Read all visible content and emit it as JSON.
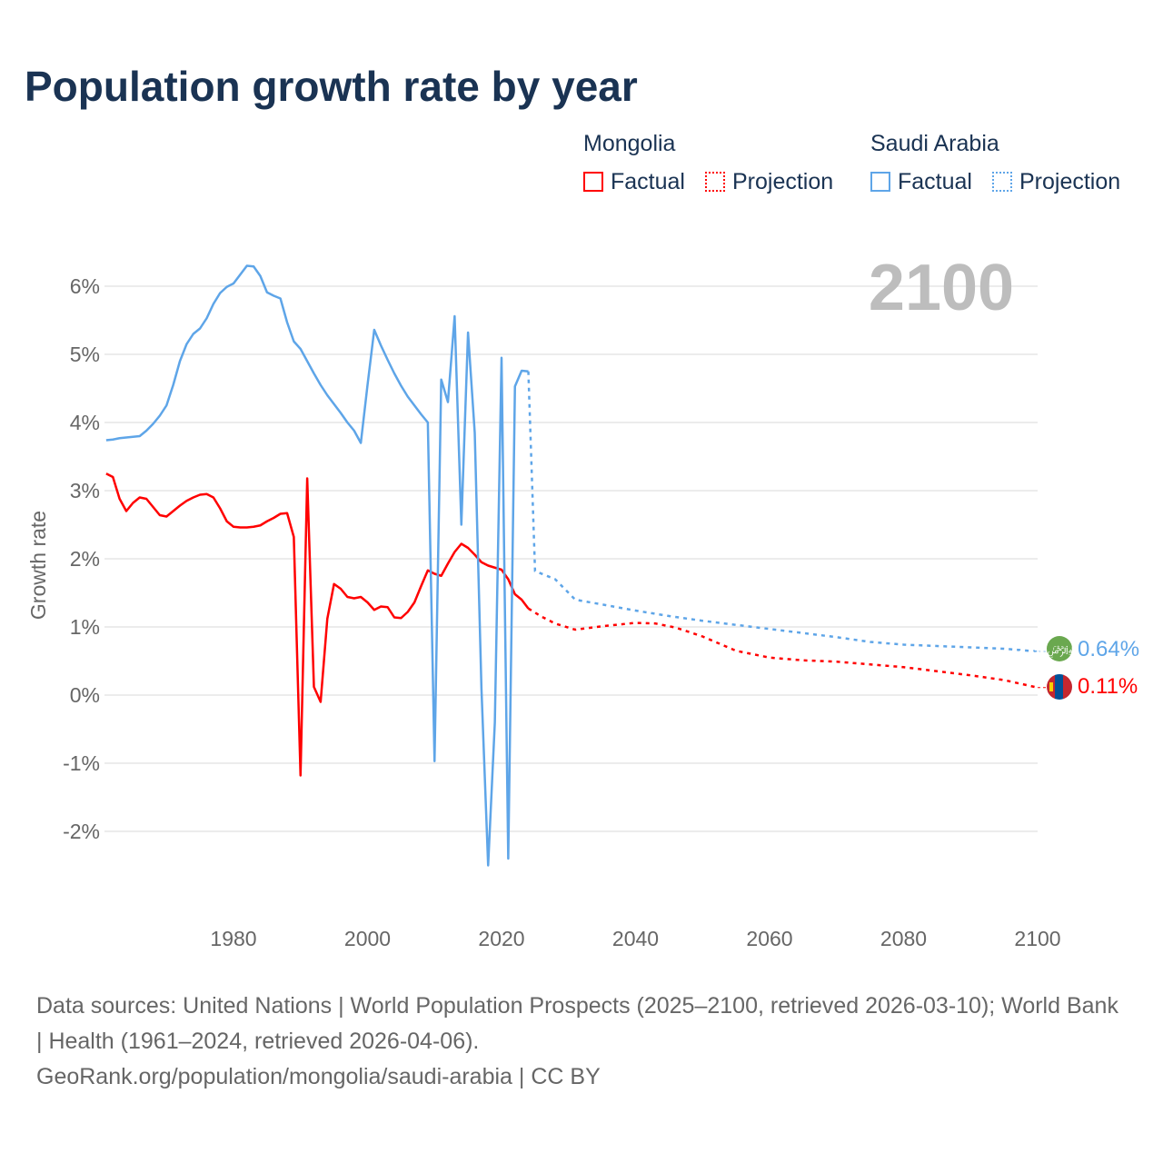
{
  "title": "Population growth rate by year",
  "legend": {
    "groups": [
      {
        "name": "Mongolia",
        "factual": "Factual",
        "projection": "Projection",
        "color": "#ff0000"
      },
      {
        "name": "Saudi Arabia",
        "factual": "Factual",
        "projection": "Projection",
        "color": "#5ea5e8"
      }
    ]
  },
  "footer": {
    "line1": "Data sources: United Nations | World Population Prospects (2025–2100, retrieved 2026-03-10); World Bank | Health (1961–2024, retrieved 2026-04-06).",
    "line2": "GeoRank.org/population/mongolia/saudi-arabia | CC BY"
  },
  "chart_data": {
    "type": "line",
    "title": "Population growth rate by year",
    "xlabel": "",
    "ylabel": "Growth rate",
    "year_label": "2100",
    "xlim": [
      1961,
      2100
    ],
    "ylim": [
      -2.5,
      6.5
    ],
    "xticks": [
      {
        "v": 1980,
        "l": "1980"
      },
      {
        "v": 2000,
        "l": "2000"
      },
      {
        "v": 2020,
        "l": "2020"
      },
      {
        "v": 2040,
        "l": "2040"
      },
      {
        "v": 2060,
        "l": "2060"
      },
      {
        "v": 2080,
        "l": "2080"
      },
      {
        "v": 2100,
        "l": "2100"
      }
    ],
    "yticks": [
      {
        "v": 6,
        "l": "6%"
      },
      {
        "v": 5,
        "l": "5%"
      },
      {
        "v": 4,
        "l": "4%"
      },
      {
        "v": 3,
        "l": "3%"
      },
      {
        "v": 2,
        "l": "2%"
      },
      {
        "v": 1,
        "l": "1%"
      },
      {
        "v": 0,
        "l": "0%"
      },
      {
        "v": -1,
        "l": "-1%"
      },
      {
        "v": -2,
        "l": "-2%"
      }
    ],
    "series": [
      {
        "name": "Mongolia",
        "color": "#ff0000",
        "end_label": "0.11%",
        "flag": "mongolia-flag",
        "factual_start": 1961,
        "factual": [
          3.25,
          3.2,
          2.88,
          2.7,
          2.82,
          2.9,
          2.88,
          2.76,
          2.64,
          2.62,
          2.7,
          2.78,
          2.85,
          2.9,
          2.94,
          2.95,
          2.9,
          2.74,
          2.55,
          2.47,
          2.46,
          2.46,
          2.47,
          2.49,
          2.55,
          2.6,
          2.66,
          2.67,
          2.32,
          -1.18,
          3.18,
          0.12,
          -0.1,
          1.12,
          1.63,
          1.56,
          1.44,
          1.42,
          1.44,
          1.36,
          1.25,
          1.3,
          1.29,
          1.14,
          1.13,
          1.22,
          1.36,
          1.6,
          1.83,
          1.78,
          1.75,
          1.93,
          2.1,
          2.22,
          2.16,
          2.06,
          1.95,
          1.9,
          1.87,
          1.84,
          1.7,
          1.48,
          1.4,
          1.27
        ],
        "projection": [
          [
            2024,
            1.27
          ],
          [
            2026,
            1.15
          ],
          [
            2028,
            1.05
          ],
          [
            2031,
            0.96
          ],
          [
            2035,
            1.01
          ],
          [
            2040,
            1.06
          ],
          [
            2043,
            1.05
          ],
          [
            2046,
            0.99
          ],
          [
            2050,
            0.86
          ],
          [
            2055,
            0.65
          ],
          [
            2060,
            0.55
          ],
          [
            2065,
            0.51
          ],
          [
            2070,
            0.49
          ],
          [
            2075,
            0.45
          ],
          [
            2080,
            0.41
          ],
          [
            2085,
            0.35
          ],
          [
            2090,
            0.29
          ],
          [
            2095,
            0.22
          ],
          [
            2100,
            0.11
          ]
        ]
      },
      {
        "name": "Saudi Arabia",
        "color": "#5ea5e8",
        "end_label": "0.64%",
        "flag": "saudi-arabia-flag",
        "factual_start": 1961,
        "factual": [
          3.74,
          3.75,
          3.77,
          3.78,
          3.79,
          3.8,
          3.88,
          3.98,
          4.1,
          4.25,
          4.55,
          4.9,
          5.15,
          5.3,
          5.38,
          5.53,
          5.74,
          5.9,
          5.99,
          6.04,
          6.17,
          6.3,
          6.29,
          6.15,
          5.91,
          5.86,
          5.82,
          5.47,
          5.19,
          5.08,
          4.9,
          4.72,
          4.55,
          4.4,
          4.27,
          4.14,
          4.0,
          3.88,
          3.7,
          4.55,
          5.36,
          5.13,
          4.92,
          4.72,
          4.54,
          4.38,
          4.25,
          4.12,
          4.0,
          -0.97,
          4.63,
          4.3,
          5.56,
          2.5,
          5.32,
          3.85,
          0.1,
          -2.5,
          -0.4,
          4.95,
          -2.4,
          4.53,
          4.76,
          4.75
        ],
        "projection": [
          [
            2024,
            4.75
          ],
          [
            2025,
            1.82
          ],
          [
            2028,
            1.7
          ],
          [
            2029,
            1.6
          ],
          [
            2031,
            1.4
          ],
          [
            2035,
            1.33
          ],
          [
            2040,
            1.24
          ],
          [
            2045,
            1.16
          ],
          [
            2050,
            1.09
          ],
          [
            2055,
            1.03
          ],
          [
            2060,
            0.97
          ],
          [
            2065,
            0.91
          ],
          [
            2070,
            0.85
          ],
          [
            2075,
            0.78
          ],
          [
            2080,
            0.74
          ],
          [
            2085,
            0.72
          ],
          [
            2090,
            0.7
          ],
          [
            2095,
            0.68
          ],
          [
            2100,
            0.64
          ]
        ]
      }
    ]
  }
}
